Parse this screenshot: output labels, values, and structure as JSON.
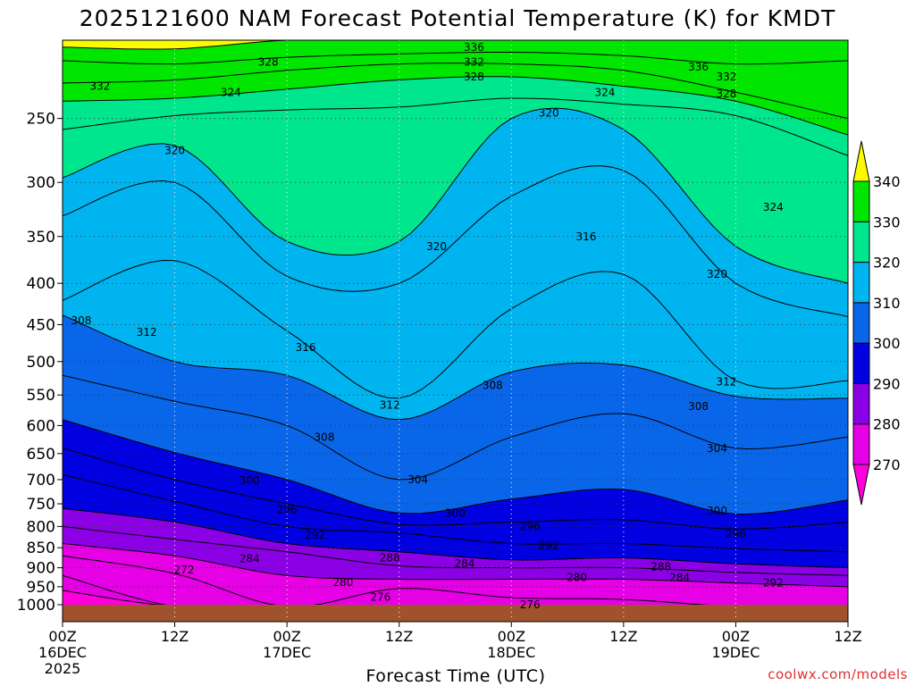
{
  "chart_data": {
    "type": "time-height contour",
    "title": "2025121600 NAM Forecast Potential Temperature (K) for KMDT",
    "xlabel": "Forecast Time (UTC)",
    "ylabel": "",
    "credit": "coolwx.com/models",
    "y_axis": {
      "scale": "log-pressure",
      "ylim": [
        1000,
        200
      ],
      "ticks": [
        250,
        300,
        350,
        400,
        450,
        500,
        550,
        600,
        650,
        700,
        750,
        800,
        850,
        900,
        950,
        1000
      ],
      "tick_labels": [
        "250",
        "300",
        "350",
        "400",
        "450",
        "500",
        "550",
        "600",
        "650",
        "700",
        "750",
        "800",
        "850",
        "900",
        "950",
        "1000"
      ]
    },
    "x_axis": {
      "ticks_hours": [
        0,
        12,
        24,
        36,
        48,
        60,
        72,
        84
      ],
      "tick_labels": [
        {
          "time": "00Z",
          "day": "16DEC",
          "year": "2025"
        },
        {
          "time": "12Z",
          "day": "",
          "year": ""
        },
        {
          "time": "00Z",
          "day": "17DEC",
          "year": ""
        },
        {
          "time": "12Z",
          "day": "",
          "year": ""
        },
        {
          "time": "00Z",
          "day": "18DEC",
          "year": ""
        },
        {
          "time": "12Z",
          "day": "",
          "year": ""
        },
        {
          "time": "00Z",
          "day": "19DEC",
          "year": ""
        },
        {
          "time": "12Z",
          "day": "",
          "year": ""
        }
      ]
    },
    "colorbar": {
      "levels": [
        270,
        280,
        290,
        300,
        310,
        320,
        330,
        340
      ],
      "labels": [
        "270",
        "280",
        "290",
        "300",
        "310",
        "320",
        "330",
        "340"
      ],
      "bins": [
        {
          "lo": 260,
          "hi": 270,
          "color": "#ff00dd"
        },
        {
          "lo": 270,
          "hi": 280,
          "color": "#e600e6"
        },
        {
          "lo": 280,
          "hi": 290,
          "color": "#8c00e6"
        },
        {
          "lo": 290,
          "hi": 300,
          "color": "#0000e0"
        },
        {
          "lo": 300,
          "hi": 310,
          "color": "#0a66e8"
        },
        {
          "lo": 310,
          "hi": 320,
          "color": "#00b4f0"
        },
        {
          "lo": 320,
          "hi": 330,
          "color": "#00e68c"
        },
        {
          "lo": 330,
          "hi": 340,
          "color": "#00e600"
        },
        {
          "lo": 340,
          "hi": 350,
          "color": "#fafa00"
        }
      ]
    },
    "ground_color": "#a0522d",
    "contour_interval_k": 2,
    "isentropes": [
      {
        "theta": 340,
        "p": [
          204,
          205,
          200,
          200,
          200,
          200,
          200,
          200
        ]
      },
      {
        "theta": 336,
        "p": [
          212,
          214,
          210,
          208,
          207,
          209,
          214,
          212
        ]
      },
      {
        "theta": 332,
        "p": [
          226,
          224,
          218,
          214,
          214,
          218,
          232,
          250
        ]
      },
      {
        "theta": 328,
        "p": [
          238,
          236,
          230,
          224,
          222,
          228,
          238,
          262
        ]
      },
      {
        "theta": 324,
        "p": [
          258,
          248,
          244,
          242,
          236,
          240,
          248,
          278
        ]
      },
      {
        "theta": 320,
        "p": [
          296,
          270,
          355,
          355,
          250,
          258,
          360,
          400
        ]
      },
      {
        "theta": 316,
        "p": [
          330,
          300,
          392,
          400,
          312,
          290,
          400,
          440
        ]
      },
      {
        "theta": 312,
        "p": [
          420,
          375,
          458,
          555,
          430,
          390,
          528,
          528
        ]
      },
      {
        "theta": 308,
        "p": [
          438,
          500,
          520,
          590,
          515,
          505,
          552,
          555
        ]
      },
      {
        "theta": 304,
        "p": [
          520,
          560,
          600,
          700,
          620,
          580,
          640,
          620
        ]
      },
      {
        "theta": 300,
        "p": [
          590,
          648,
          700,
          770,
          740,
          720,
          772,
          742
        ]
      },
      {
        "theta": 296,
        "p": [
          640,
          700,
          750,
          795,
          790,
          785,
          806,
          790
        ]
      },
      {
        "theta": 292,
        "p": [
          690,
          745,
          800,
          815,
          840,
          840,
          852,
          860
        ]
      },
      {
        "theta": 288,
        "p": [
          760,
          790,
          840,
          860,
          880,
          875,
          890,
          900
        ]
      },
      {
        "theta": 284,
        "p": [
          800,
          830,
          860,
          895,
          900,
          900,
          912,
          920
        ]
      },
      {
        "theta": 280,
        "p": [
          840,
          870,
          920,
          930,
          930,
          930,
          940,
          950
        ]
      },
      {
        "theta": 276,
        "p": [
          870,
          915,
          1005,
          955,
          980,
          985,
          1005,
          1005
        ]
      },
      {
        "theta": 272,
        "p": [
          920,
          1005,
          1005,
          1005,
          1005,
          1005,
          1005,
          1005
        ]
      },
      {
        "theta": 268,
        "p": [
          960,
          1005,
          1005,
          1005,
          1005,
          1005,
          1005,
          1005
        ]
      }
    ],
    "contour_labels": [
      {
        "text": "336",
        "hour": 44,
        "p": 204
      },
      {
        "text": "332",
        "hour": 44,
        "p": 213
      },
      {
        "text": "328",
        "hour": 44,
        "p": 222
      },
      {
        "text": "328",
        "hour": 22,
        "p": 213
      },
      {
        "text": "332",
        "hour": 4,
        "p": 228
      },
      {
        "text": "324",
        "hour": 18,
        "p": 232
      },
      {
        "text": "320",
        "hour": 12,
        "p": 274
      },
      {
        "text": "320",
        "hour": 52,
        "p": 246
      },
      {
        "text": "324",
        "hour": 58,
        "p": 232
      },
      {
        "text": "336",
        "hour": 68,
        "p": 216
      },
      {
        "text": "332",
        "hour": 71,
        "p": 222
      },
      {
        "text": "328",
        "hour": 71,
        "p": 233
      },
      {
        "text": "324",
        "hour": 76,
        "p": 322
      },
      {
        "text": "320",
        "hour": 40,
        "p": 360
      },
      {
        "text": "316",
        "hour": 56,
        "p": 350
      },
      {
        "text": "320",
        "hour": 70,
        "p": 390
      },
      {
        "text": "308",
        "hour": 2,
        "p": 445
      },
      {
        "text": "312",
        "hour": 9,
        "p": 460
      },
      {
        "text": "316",
        "hour": 26,
        "p": 480
      },
      {
        "text": "312",
        "hour": 35,
        "p": 566
      },
      {
        "text": "308",
        "hour": 46,
        "p": 535
      },
      {
        "text": "312",
        "hour": 71,
        "p": 530
      },
      {
        "text": "308",
        "hour": 68,
        "p": 568
      },
      {
        "text": "308",
        "hour": 28,
        "p": 620
      },
      {
        "text": "304",
        "hour": 38,
        "p": 700
      },
      {
        "text": "304",
        "hour": 70,
        "p": 640
      },
      {
        "text": "300",
        "hour": 20,
        "p": 702
      },
      {
        "text": "296",
        "hour": 24,
        "p": 762
      },
      {
        "text": "300",
        "hour": 42,
        "p": 770
      },
      {
        "text": "300",
        "hour": 70,
        "p": 765
      },
      {
        "text": "292",
        "hour": 27,
        "p": 820
      },
      {
        "text": "296",
        "hour": 50,
        "p": 800
      },
      {
        "text": "296",
        "hour": 72,
        "p": 818
      },
      {
        "text": "292",
        "hour": 52,
        "p": 845
      },
      {
        "text": "284",
        "hour": 20,
        "p": 877
      },
      {
        "text": "288",
        "hour": 35,
        "p": 875
      },
      {
        "text": "284",
        "hour": 43,
        "p": 890
      },
      {
        "text": "288",
        "hour": 64,
        "p": 897
      },
      {
        "text": "272",
        "hour": 13,
        "p": 905
      },
      {
        "text": "280",
        "hour": 30,
        "p": 938
      },
      {
        "text": "280",
        "hour": 55,
        "p": 925
      },
      {
        "text": "284",
        "hour": 66,
        "p": 925
      },
      {
        "text": "292",
        "hour": 76,
        "p": 940
      },
      {
        "text": "276",
        "hour": 34,
        "p": 978
      },
      {
        "text": "276",
        "hour": 50,
        "p": 1000
      }
    ]
  }
}
